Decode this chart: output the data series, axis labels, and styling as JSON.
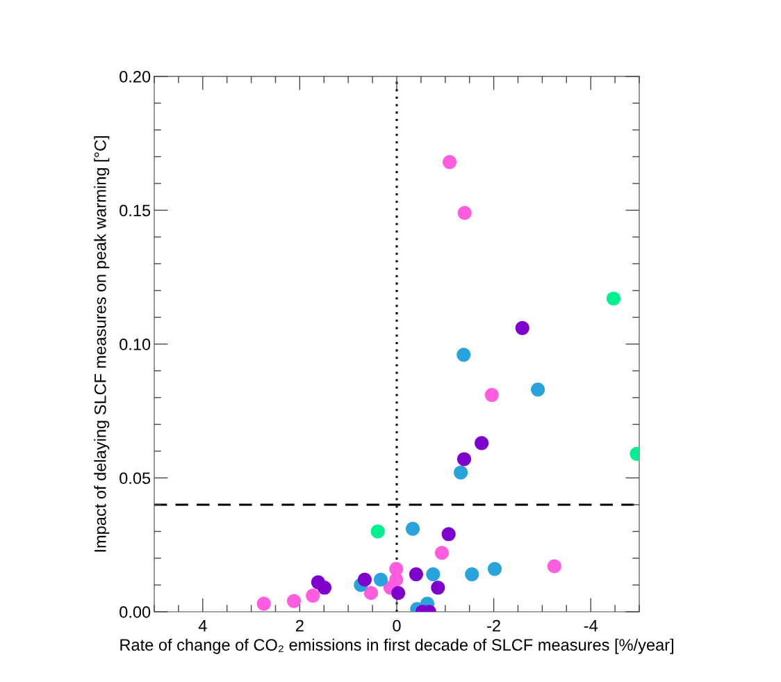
{
  "chart_data": {
    "type": "scatter",
    "xlabel": "Rate of change of CO₂ emissions in first decade of SLCF measures [%/year]",
    "ylabel": "Impact of delaying SLCF measures on peak warming [°C]",
    "xlim": [
      5,
      -5
    ],
    "xticks": [
      4,
      2,
      0,
      -2,
      -4
    ],
    "ylim": [
      0,
      0.2
    ],
    "yticks": [
      {
        "value": 0,
        "label": "0.00"
      },
      {
        "value": 0.05,
        "label": "0.05"
      },
      {
        "value": 0.1,
        "label": "0.10"
      },
      {
        "value": 0.15,
        "label": "0.15"
      },
      {
        "value": 0.2,
        "label": "0.20"
      }
    ],
    "marker": "circle",
    "grid": false,
    "ref_lines": [
      {
        "axis": "y",
        "value": 0.04,
        "line_style": "dashed",
        "color": "#000000"
      },
      {
        "axis": "x",
        "value": 0,
        "line_style": "dotted",
        "color": "#000000"
      }
    ],
    "series": [
      {
        "color": "#ff5ce0",
        "x": [
          -1.09,
          -1.4,
          -1.96,
          -0.93,
          -3.25,
          0.01,
          0.01,
          0.13,
          0.53,
          1.73,
          2.12,
          2.74
        ],
        "values": [
          0.168,
          0.149,
          0.081,
          0.022,
          0.017,
          0.016,
          0.012,
          0.009,
          0.007,
          0.006,
          0.004,
          0.003
        ]
      },
      {
        "color": "#29a3dc",
        "x": [
          -1.38,
          -2.91,
          -1.32,
          -0.33,
          -2.02,
          -1.55,
          -0.75,
          0.33,
          0.74,
          -0.63,
          -0.42
        ],
        "values": [
          0.096,
          0.083,
          0.052,
          0.031,
          0.016,
          0.014,
          0.014,
          0.012,
          0.01,
          0.003,
          0.001
        ]
      },
      {
        "color": "#7f00cc",
        "x": [
          -2.59,
          -1.75,
          -1.39,
          -1.07,
          -0.4,
          -0.03,
          -0.85,
          0.66,
          1.62,
          1.49,
          -0.53,
          -0.67
        ],
        "values": [
          0.106,
          0.063,
          0.057,
          0.029,
          0.014,
          0.007,
          0.009,
          0.012,
          0.011,
          0.009,
          0.0,
          0.0
        ]
      },
      {
        "color": "#00f090",
        "x": [
          -4.47,
          -4.95,
          0.39
        ],
        "values": [
          0.117,
          0.059,
          0.03
        ]
      }
    ]
  }
}
